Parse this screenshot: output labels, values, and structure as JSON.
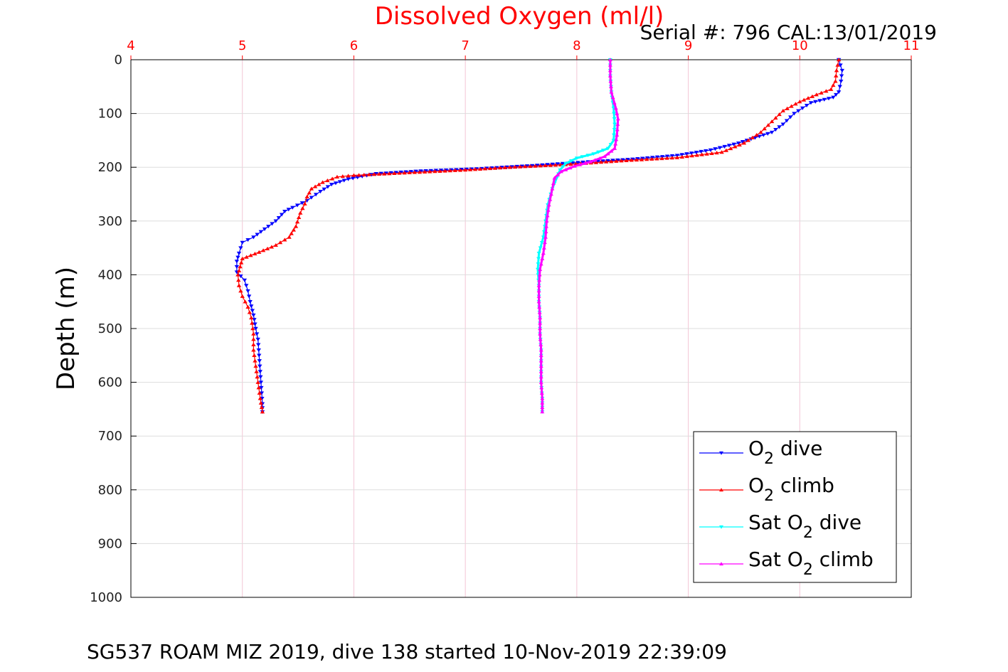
{
  "chart_data": {
    "type": "line",
    "title": "Dissolved Oxygen (ml/l)",
    "serial_text": "Serial #: 796  CAL:13/01/2019",
    "footer": "SG537 ROAM MIZ 2019, dive 138 started 10-Nov-2019 22:39:09",
    "xlabel": "Dissolved Oxygen (ml/l)",
    "ylabel": "Depth (m)",
    "xlim": [
      4,
      11
    ],
    "ylim": [
      0,
      1000
    ],
    "y_reversed": true,
    "x_axis_position": "top",
    "xticks": [
      "4",
      "5",
      "6",
      "7",
      "8",
      "9",
      "10",
      "11"
    ],
    "yticks": [
      "0",
      "100",
      "200",
      "300",
      "400",
      "500",
      "600",
      "700",
      "800",
      "900",
      "1000"
    ],
    "grid": true,
    "legend_position": "bottom-right",
    "legend": [
      {
        "prefix": "O",
        "sub": "2",
        "suffix": " dive"
      },
      {
        "prefix": "O",
        "sub": "2",
        "suffix": " climb"
      },
      {
        "prefix": "Sat O",
        "sub": "2",
        "suffix": " dive"
      },
      {
        "prefix": "Sat O",
        "sub": "2",
        "suffix": " climb"
      }
    ],
    "series": [
      {
        "key": "o2_dive",
        "color": "#0000ff",
        "marker": "triangle-down",
        "points": [
          [
            10.35,
            0
          ],
          [
            10.38,
            20
          ],
          [
            10.37,
            40
          ],
          [
            10.35,
            60
          ],
          [
            10.3,
            70
          ],
          [
            10.1,
            80
          ],
          [
            9.95,
            100
          ],
          [
            9.85,
            120
          ],
          [
            9.75,
            135
          ],
          [
            9.6,
            145
          ],
          [
            9.45,
            155
          ],
          [
            9.2,
            168
          ],
          [
            8.9,
            178
          ],
          [
            8.5,
            185
          ],
          [
            8.1,
            190
          ],
          [
            7.6,
            197
          ],
          [
            7.1,
            203
          ],
          [
            6.6,
            207
          ],
          [
            6.2,
            212
          ],
          [
            5.95,
            222
          ],
          [
            5.8,
            232
          ],
          [
            5.7,
            245
          ],
          [
            5.58,
            262
          ],
          [
            5.45,
            275
          ],
          [
            5.38,
            282
          ],
          [
            5.3,
            300
          ],
          [
            5.2,
            315
          ],
          [
            5.1,
            330
          ],
          [
            5.0,
            340
          ],
          [
            4.97,
            360
          ],
          [
            4.95,
            375
          ],
          [
            4.95,
            395
          ],
          [
            5.02,
            410
          ],
          [
            5.05,
            430
          ],
          [
            5.07,
            450
          ],
          [
            5.1,
            475
          ],
          [
            5.12,
            500
          ],
          [
            5.14,
            520
          ],
          [
            5.15,
            550
          ],
          [
            5.16,
            580
          ],
          [
            5.17,
            610
          ],
          [
            5.18,
            640
          ],
          [
            5.18,
            655
          ]
        ]
      },
      {
        "key": "o2_climb",
        "color": "#ff0000",
        "marker": "triangle-up",
        "points": [
          [
            10.35,
            0
          ],
          [
            10.33,
            20
          ],
          [
            10.32,
            40
          ],
          [
            10.28,
            55
          ],
          [
            10.15,
            65
          ],
          [
            10.0,
            78
          ],
          [
            9.85,
            95
          ],
          [
            9.75,
            115
          ],
          [
            9.65,
            135
          ],
          [
            9.5,
            155
          ],
          [
            9.3,
            172
          ],
          [
            8.9,
            182
          ],
          [
            8.4,
            188
          ],
          [
            7.9,
            195
          ],
          [
            7.4,
            200
          ],
          [
            7.0,
            205
          ],
          [
            6.5,
            210
          ],
          [
            6.0,
            215
          ],
          [
            5.85,
            218
          ],
          [
            5.72,
            228
          ],
          [
            5.62,
            240
          ],
          [
            5.58,
            255
          ],
          [
            5.56,
            268
          ],
          [
            5.52,
            285
          ],
          [
            5.48,
            310
          ],
          [
            5.42,
            330
          ],
          [
            5.3,
            345
          ],
          [
            5.15,
            358
          ],
          [
            5.0,
            370
          ],
          [
            4.98,
            385
          ],
          [
            4.96,
            400
          ],
          [
            4.97,
            420
          ],
          [
            5.0,
            440
          ],
          [
            5.05,
            460
          ],
          [
            5.08,
            480
          ],
          [
            5.1,
            510
          ],
          [
            5.1,
            540
          ],
          [
            5.12,
            570
          ],
          [
            5.14,
            600
          ],
          [
            5.16,
            630
          ],
          [
            5.18,
            655
          ]
        ]
      },
      {
        "key": "sat_dive",
        "color": "#00ffff",
        "marker": "triangle-down",
        "points": [
          [
            8.3,
            0
          ],
          [
            8.3,
            30
          ],
          [
            8.31,
            60
          ],
          [
            8.33,
            90
          ],
          [
            8.34,
            120
          ],
          [
            8.33,
            150
          ],
          [
            8.28,
            165
          ],
          [
            8.15,
            175
          ],
          [
            8.0,
            183
          ],
          [
            7.9,
            193
          ],
          [
            7.85,
            205
          ],
          [
            7.82,
            220
          ],
          [
            7.78,
            240
          ],
          [
            7.74,
            270
          ],
          [
            7.72,
            300
          ],
          [
            7.7,
            330
          ],
          [
            7.66,
            360
          ],
          [
            7.65,
            390
          ],
          [
            7.66,
            420
          ],
          [
            7.66,
            450
          ],
          [
            7.67,
            480
          ],
          [
            7.67,
            510
          ],
          [
            7.68,
            540
          ],
          [
            7.68,
            570
          ],
          [
            7.68,
            600
          ],
          [
            7.69,
            630
          ],
          [
            7.69,
            655
          ]
        ]
      },
      {
        "key": "sat_climb",
        "color": "#ff00ff",
        "marker": "triangle-up",
        "points": [
          [
            8.3,
            0
          ],
          [
            8.3,
            30
          ],
          [
            8.31,
            60
          ],
          [
            8.35,
            90
          ],
          [
            8.37,
            110
          ],
          [
            8.36,
            140
          ],
          [
            8.34,
            165
          ],
          [
            8.25,
            180
          ],
          [
            8.12,
            190
          ],
          [
            7.98,
            198
          ],
          [
            7.86,
            208
          ],
          [
            7.8,
            220
          ],
          [
            7.78,
            240
          ],
          [
            7.75,
            270
          ],
          [
            7.73,
            300
          ],
          [
            7.72,
            330
          ],
          [
            7.7,
            360
          ],
          [
            7.67,
            390
          ],
          [
            7.66,
            420
          ],
          [
            7.66,
            450
          ],
          [
            7.67,
            480
          ],
          [
            7.67,
            510
          ],
          [
            7.68,
            540
          ],
          [
            7.68,
            570
          ],
          [
            7.68,
            600
          ],
          [
            7.69,
            630
          ],
          [
            7.69,
            655
          ]
        ]
      }
    ]
  }
}
